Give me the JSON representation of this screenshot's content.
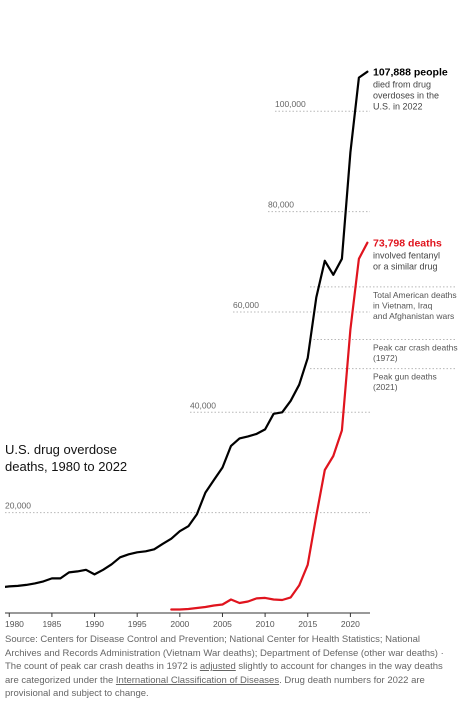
{
  "chart_data": {
    "type": "line",
    "title": "U.S. drug overdose\ndeaths, 1980 to 2022",
    "xlabel": "",
    "ylabel": "",
    "xlim": [
      1979.5,
      2022.3
    ],
    "ylim": [
      0,
      114000
    ],
    "grid": true,
    "x_ticks": [
      1980,
      1985,
      1990,
      1995,
      2000,
      2005,
      2010,
      2015,
      2020
    ],
    "y_ticks": [
      {
        "value": 20000,
        "label": "20,000"
      },
      {
        "value": 40000,
        "label": "40,000"
      },
      {
        "value": 60000,
        "label": "60,000"
      },
      {
        "value": 80000,
        "label": "80,000"
      },
      {
        "value": 100000,
        "label": "100,000"
      }
    ],
    "series": [
      {
        "color": "#000000",
        "x": [
          1979,
          1980,
          1981,
          1982,
          1983,
          1984,
          1985,
          1986,
          1987,
          1988,
          1989,
          1990,
          1991,
          1992,
          1993,
          1994,
          1995,
          1996,
          1997,
          1998,
          1999,
          2000,
          2001,
          2002,
          2003,
          2004,
          2005,
          2006,
          2007,
          2008,
          2009,
          2010,
          2011,
          2012,
          2013,
          2014,
          2015,
          2016,
          2017,
          2018,
          2019,
          2020,
          2021,
          2022
        ],
        "y": [
          5100,
          5300,
          5400,
          5600,
          5900,
          6300,
          6900,
          6900,
          8100,
          8300,
          8600,
          7700,
          8600,
          9700,
          11100,
          11700,
          12100,
          12300,
          12700,
          13800,
          14800,
          16300,
          17300,
          19700,
          24000,
          26500,
          29000,
          33300,
          34800,
          35200,
          35700,
          36600,
          39700,
          40000,
          42300,
          45500,
          50800,
          62900,
          70200,
          67400,
          70600,
          91800,
          106700,
          107888
        ]
      },
      {
        "color": "#e0141e",
        "x": [
          1999,
          2000,
          2001,
          2002,
          2003,
          2004,
          2005,
          2006,
          2007,
          2008,
          2009,
          2010,
          2011,
          2012,
          2013,
          2014,
          2015,
          2016,
          2017,
          2018,
          2019,
          2020,
          2021,
          2022
        ],
        "y": [
          700,
          700,
          800,
          1000,
          1200,
          1500,
          1700,
          2700,
          2000,
          2300,
          2900,
          3000,
          2700,
          2600,
          3100,
          5500,
          9600,
          19400,
          28500,
          31300,
          36400,
          56500,
          70600,
          73798
        ]
      }
    ],
    "annotations": [
      {
        "bold": "107,888 people",
        "text": [
          "died from drug",
          "overdoses in the",
          "U.S. in 2022"
        ],
        "color": "#000000"
      },
      {
        "bold": "73,798 deaths",
        "text": [
          "involved fentanyl",
          "or a similar drug"
        ],
        "color": "#e0141e"
      }
    ],
    "reference_lines": [
      {
        "value": 65000,
        "text": [
          "Total American deaths",
          "in Vietnam, Iraq",
          "and Afghanistan wars"
        ]
      },
      {
        "value": 54500,
        "text": [
          "Peak car crash deaths",
          "(1972)"
        ]
      },
      {
        "value": 48700,
        "text": [
          "Peak gun deaths",
          "(2021)"
        ]
      }
    ]
  },
  "source": {
    "text_before_link1": "Source: Centers for Disease Control and Prevention; National Center for Health Statistics; National Archives and Records Administration (Vietnam War deaths); Department of Defense (other war deaths) · The count of peak car crash deaths in 1972 is ",
    "link1": "adjusted",
    "text_mid": " slightly to account for changes in the way deaths are categorized under the ",
    "link2": "International Classification of Diseases",
    "text_after": ". Drug death numbers for 2022 are provisional and subject to change."
  }
}
